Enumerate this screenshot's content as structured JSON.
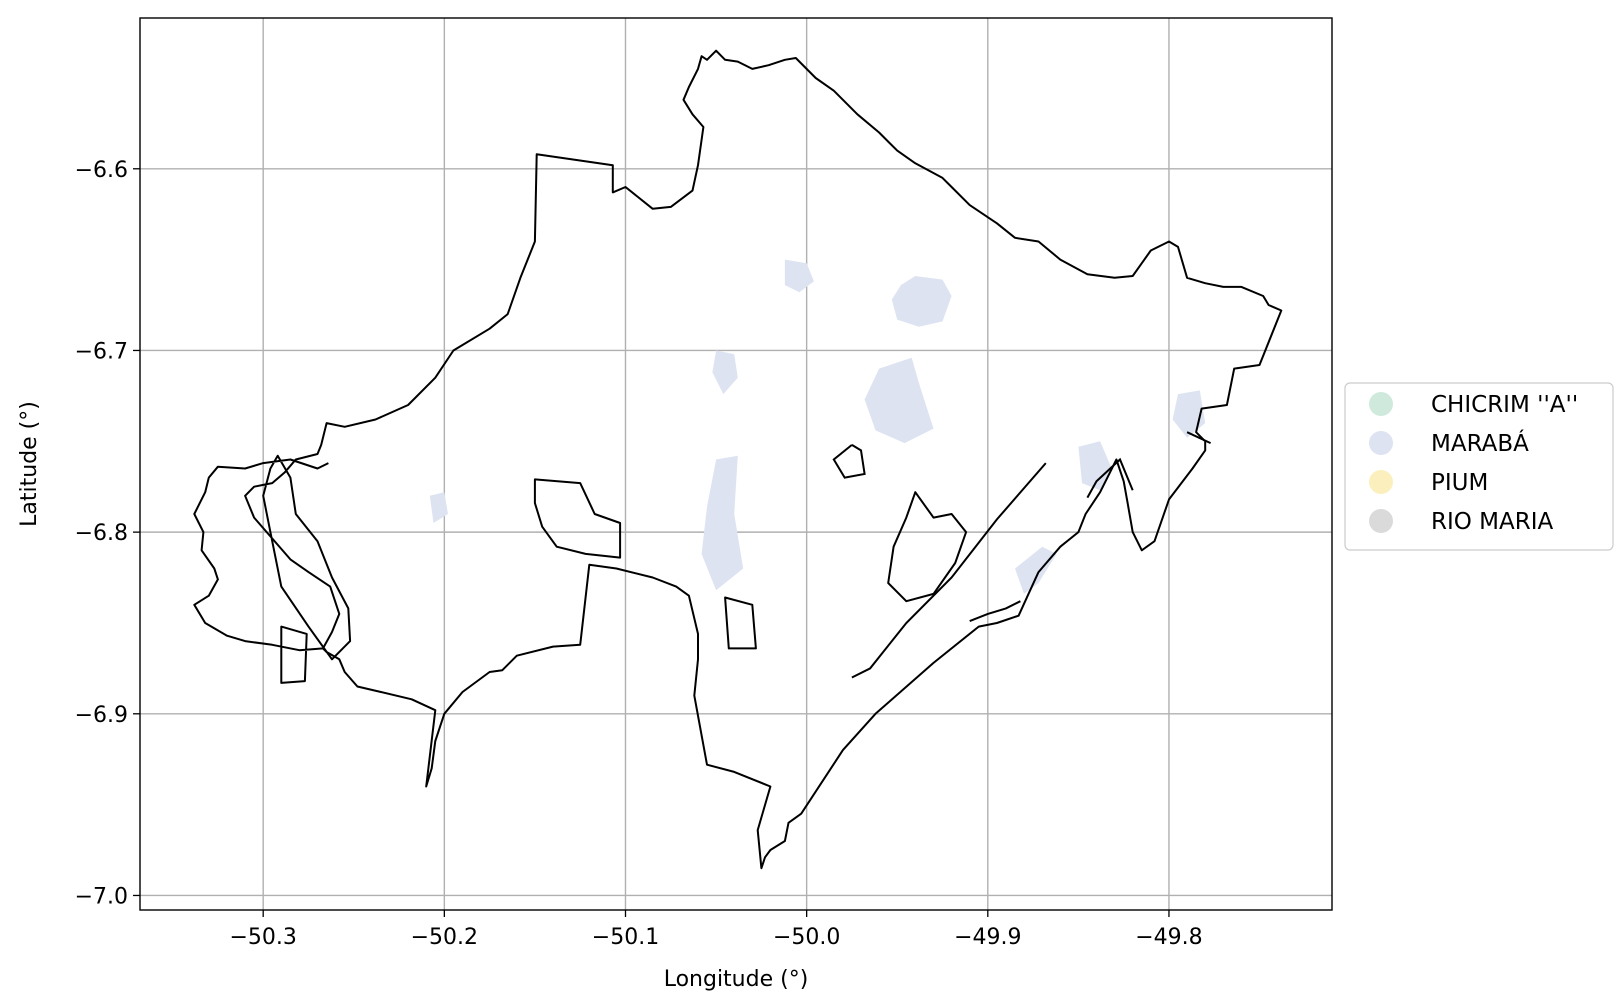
{
  "map": {
    "xlabel": "Longitude (°)",
    "ylabel": "Latitude (°)",
    "xlim": [
      -50.368,
      -49.71
    ],
    "ylim": [
      -7.008,
      -6.517
    ],
    "grid": true,
    "x_ticks": [
      {
        "value": -50.3,
        "label": "−50.3"
      },
      {
        "value": -50.2,
        "label": "−50.2"
      },
      {
        "value": -50.1,
        "label": "−50.1"
      },
      {
        "value": -50.0,
        "label": "−50.0"
      },
      {
        "value": -49.9,
        "label": "−49.9"
      },
      {
        "value": -49.8,
        "label": "−49.8"
      }
    ],
    "y_ticks": [
      {
        "value": -6.6,
        "label": "−6.6"
      },
      {
        "value": -6.7,
        "label": "−6.7"
      },
      {
        "value": -6.8,
        "label": "−6.8"
      },
      {
        "value": -6.9,
        "label": "−6.9"
      },
      {
        "value": -7.0,
        "label": "−7.0"
      }
    ],
    "legend": {
      "placement": "right",
      "entries": [
        {
          "label": "CHICRIM ''A''",
          "color": "#cfeadc"
        },
        {
          "label": "MARABÁ",
          "color": "#dde3f1"
        },
        {
          "label": "PIUM",
          "color": "#fbefbd"
        },
        {
          "label": "RIO MARIA",
          "color": "#dadada"
        }
      ]
    },
    "colors": {
      "boundary": "#000000",
      "grid": "#b0b0b0",
      "fill_maraba": "#dde3f1"
    },
    "boundary_main": [
      [
        -50.267,
        -6.864
      ],
      [
        -50.262,
        -6.855
      ],
      [
        -50.258,
        -6.845
      ],
      [
        -50.263,
        -6.83
      ],
      [
        -50.275,
        -6.822
      ],
      [
        -50.285,
        -6.815
      ],
      [
        -50.305,
        -6.792
      ],
      [
        -50.31,
        -6.78
      ],
      [
        -50.305,
        -6.775
      ],
      [
        -50.3,
        -6.774
      ],
      [
        -50.295,
        -6.773
      ],
      [
        -50.288,
        -6.767
      ],
      [
        -50.282,
        -6.76
      ],
      [
        -50.27,
        -6.757
      ],
      [
        -50.268,
        -6.752
      ],
      [
        -50.265,
        -6.74
      ],
      [
        -50.255,
        -6.742
      ],
      [
        -50.238,
        -6.738
      ],
      [
        -50.22,
        -6.73
      ],
      [
        -50.205,
        -6.715
      ],
      [
        -50.195,
        -6.7
      ],
      [
        -50.175,
        -6.688
      ],
      [
        -50.165,
        -6.68
      ],
      [
        -50.158,
        -6.66
      ],
      [
        -50.15,
        -6.64
      ],
      [
        -50.149,
        -6.592
      ],
      [
        -50.107,
        -6.598
      ],
      [
        -50.107,
        -6.613
      ],
      [
        -50.1,
        -6.61
      ],
      [
        -50.085,
        -6.622
      ],
      [
        -50.075,
        -6.621
      ],
      [
        -50.063,
        -6.612
      ],
      [
        -50.06,
        -6.598
      ],
      [
        -50.057,
        -6.577
      ],
      [
        -50.063,
        -6.57
      ],
      [
        -50.068,
        -6.562
      ],
      [
        -50.065,
        -6.555
      ],
      [
        -50.06,
        -6.545
      ],
      [
        -50.058,
        -6.538
      ],
      [
        -50.055,
        -6.54
      ],
      [
        -50.05,
        -6.535
      ],
      [
        -50.045,
        -6.54
      ],
      [
        -50.038,
        -6.541
      ],
      [
        -50.03,
        -6.545
      ],
      [
        -50.021,
        -6.543
      ],
      [
        -50.012,
        -6.54
      ],
      [
        -50.006,
        -6.539
      ],
      [
        -49.995,
        -6.55
      ],
      [
        -49.985,
        -6.557
      ],
      [
        -49.972,
        -6.57
      ],
      [
        -49.96,
        -6.58
      ],
      [
        -49.95,
        -6.59
      ],
      [
        -49.94,
        -6.597
      ],
      [
        -49.925,
        -6.605
      ],
      [
        -49.92,
        -6.61
      ],
      [
        -49.91,
        -6.62
      ],
      [
        -49.895,
        -6.63
      ],
      [
        -49.885,
        -6.638
      ],
      [
        -49.872,
        -6.64
      ],
      [
        -49.86,
        -6.65
      ],
      [
        -49.845,
        -6.658
      ],
      [
        -49.83,
        -6.66
      ],
      [
        -49.82,
        -6.659
      ],
      [
        -49.81,
        -6.645
      ],
      [
        -49.8,
        -6.64
      ],
      [
        -49.795,
        -6.643
      ],
      [
        -49.79,
        -6.66
      ],
      [
        -49.78,
        -6.663
      ],
      [
        -49.77,
        -6.665
      ],
      [
        -49.76,
        -6.665
      ],
      [
        -49.748,
        -6.67
      ],
      [
        -49.745,
        -6.675
      ],
      [
        -49.738,
        -6.678
      ],
      [
        -49.75,
        -6.708
      ],
      [
        -49.764,
        -6.71
      ],
      [
        -49.768,
        -6.73
      ],
      [
        -49.782,
        -6.732
      ],
      [
        -49.785,
        -6.745
      ],
      [
        -49.78,
        -6.75
      ],
      [
        -49.78,
        -6.755
      ],
      [
        -49.787,
        -6.765
      ],
      [
        -49.8,
        -6.782
      ],
      [
        -49.808,
        -6.805
      ],
      [
        -49.815,
        -6.81
      ],
      [
        -49.82,
        -6.8
      ],
      [
        -49.823,
        -6.783
      ],
      [
        -49.825,
        -6.772
      ],
      [
        -49.829,
        -6.76
      ],
      [
        -49.838,
        -6.778
      ],
      [
        -49.846,
        -6.79
      ],
      [
        -49.85,
        -6.8
      ],
      [
        -49.86,
        -6.808
      ],
      [
        -49.872,
        -6.822
      ],
      [
        -49.878,
        -6.835
      ],
      [
        -49.883,
        -6.846
      ],
      [
        -49.895,
        -6.85
      ],
      [
        -49.905,
        -6.852
      ],
      [
        -49.93,
        -6.872
      ],
      [
        -49.962,
        -6.9
      ],
      [
        -49.98,
        -6.92
      ],
      [
        -50.003,
        -6.955
      ],
      [
        -50.01,
        -6.96
      ],
      [
        -50.012,
        -6.97
      ],
      [
        -50.02,
        -6.975
      ],
      [
        -50.023,
        -6.979
      ],
      [
        -50.025,
        -6.985
      ],
      [
        -50.027,
        -6.964
      ],
      [
        -50.02,
        -6.94
      ],
      [
        -50.04,
        -6.932
      ],
      [
        -50.055,
        -6.928
      ],
      [
        -50.062,
        -6.89
      ],
      [
        -50.06,
        -6.87
      ],
      [
        -50.06,
        -6.856
      ],
      [
        -50.065,
        -6.835
      ],
      [
        -50.072,
        -6.83
      ],
      [
        -50.085,
        -6.825
      ],
      [
        -50.105,
        -6.82
      ],
      [
        -50.12,
        -6.818
      ],
      [
        -50.125,
        -6.862
      ],
      [
        -50.14,
        -6.863
      ],
      [
        -50.16,
        -6.868
      ],
      [
        -50.168,
        -6.876
      ],
      [
        -50.175,
        -6.877
      ],
      [
        -50.19,
        -6.888
      ],
      [
        -50.2,
        -6.9
      ],
      [
        -50.205,
        -6.915
      ],
      [
        -50.207,
        -6.93
      ],
      [
        -50.21,
        -6.94
      ],
      [
        -50.205,
        -6.898
      ],
      [
        -50.218,
        -6.892
      ],
      [
        -50.235,
        -6.888
      ],
      [
        -50.248,
        -6.885
      ],
      [
        -50.255,
        -6.877
      ],
      [
        -50.258,
        -6.87
      ],
      [
        -50.265,
        -6.866
      ],
      [
        -50.267,
        -6.864
      ]
    ],
    "boundary_west": [
      [
        -50.264,
        -6.762
      ],
      [
        -50.27,
        -6.765
      ],
      [
        -50.285,
        -6.76
      ],
      [
        -50.3,
        -6.762
      ],
      [
        -50.31,
        -6.765
      ],
      [
        -50.325,
        -6.764
      ],
      [
        -50.33,
        -6.77
      ],
      [
        -50.332,
        -6.778
      ],
      [
        -50.338,
        -6.79
      ],
      [
        -50.333,
        -6.8
      ],
      [
        -50.334,
        -6.81
      ],
      [
        -50.327,
        -6.82
      ],
      [
        -50.325,
        -6.826
      ],
      [
        -50.33,
        -6.835
      ],
      [
        -50.338,
        -6.84
      ],
      [
        -50.332,
        -6.85
      ],
      [
        -50.32,
        -6.857
      ],
      [
        -50.31,
        -6.86
      ],
      [
        -50.295,
        -6.862
      ],
      [
        -50.28,
        -6.865
      ],
      [
        -50.267,
        -6.864
      ]
    ],
    "holes": [
      [
        [
          -50.292,
          -6.758
        ],
        [
          -50.285,
          -6.77
        ],
        [
          -50.282,
          -6.79
        ],
        [
          -50.27,
          -6.805
        ],
        [
          -50.262,
          -6.825
        ],
        [
          -50.253,
          -6.842
        ],
        [
          -50.252,
          -6.86
        ],
        [
          -50.262,
          -6.87
        ],
        [
          -50.275,
          -6.852
        ],
        [
          -50.29,
          -6.83
        ],
        [
          -50.296,
          -6.8
        ],
        [
          -50.3,
          -6.78
        ],
        [
          -50.296,
          -6.765
        ]
      ],
      [
        [
          -50.29,
          -6.852
        ],
        [
          -50.276,
          -6.856
        ],
        [
          -50.277,
          -6.882
        ],
        [
          -50.29,
          -6.883
        ]
      ],
      [
        [
          -50.15,
          -6.771
        ],
        [
          -50.125,
          -6.773
        ],
        [
          -50.117,
          -6.79
        ],
        [
          -50.103,
          -6.795
        ],
        [
          -50.103,
          -6.814
        ],
        [
          -50.122,
          -6.812
        ],
        [
          -50.138,
          -6.808
        ],
        [
          -50.146,
          -6.797
        ],
        [
          -50.15,
          -6.784
        ]
      ],
      [
        [
          -50.045,
          -6.836
        ],
        [
          -50.03,
          -6.84
        ],
        [
          -50.028,
          -6.864
        ],
        [
          -50.043,
          -6.864
        ]
      ],
      [
        [
          -49.94,
          -6.778
        ],
        [
          -49.93,
          -6.792
        ],
        [
          -49.92,
          -6.79
        ],
        [
          -49.912,
          -6.8
        ],
        [
          -49.918,
          -6.817
        ],
        [
          -49.93,
          -6.834
        ],
        [
          -49.945,
          -6.838
        ],
        [
          -49.955,
          -6.828
        ],
        [
          -49.952,
          -6.808
        ],
        [
          -49.945,
          -6.792
        ]
      ]
    ],
    "extra_lines": [
      [
        [
          -49.975,
          -6.752
        ],
        [
          -49.985,
          -6.76
        ],
        [
          -49.979,
          -6.77
        ],
        [
          -49.968,
          -6.768
        ],
        [
          -49.97,
          -6.755
        ],
        [
          -49.975,
          -6.752
        ]
      ],
      [
        [
          -49.868,
          -6.762
        ],
        [
          -49.895,
          -6.793
        ],
        [
          -49.92,
          -6.825
        ],
        [
          -49.945,
          -6.85
        ],
        [
          -49.965,
          -6.875
        ],
        [
          -49.975,
          -6.88
        ]
      ],
      [
        [
          -49.82,
          -6.777
        ],
        [
          -49.827,
          -6.76
        ],
        [
          -49.84,
          -6.772
        ],
        [
          -49.845,
          -6.781
        ]
      ],
      [
        [
          -49.882,
          -6.838
        ],
        [
          -49.89,
          -6.842
        ],
        [
          -49.9,
          -6.845
        ],
        [
          -49.91,
          -6.849
        ]
      ],
      [
        [
          -49.777,
          -6.751
        ],
        [
          -49.79,
          -6.745
        ]
      ]
    ],
    "water_patches": [
      [
        [
          -49.948,
          -6.664
        ],
        [
          -49.94,
          -6.659
        ],
        [
          -49.925,
          -6.661
        ],
        [
          -49.92,
          -6.67
        ],
        [
          -49.925,
          -6.684
        ],
        [
          -49.938,
          -6.687
        ],
        [
          -49.95,
          -6.683
        ],
        [
          -49.953,
          -6.672
        ]
      ],
      [
        [
          -49.96,
          -6.71
        ],
        [
          -49.942,
          -6.704
        ],
        [
          -49.938,
          -6.718
        ],
        [
          -49.93,
          -6.743
        ],
        [
          -49.946,
          -6.751
        ],
        [
          -49.962,
          -6.744
        ],
        [
          -49.968,
          -6.727
        ]
      ],
      [
        [
          -50.05,
          -6.76
        ],
        [
          -50.038,
          -6.758
        ],
        [
          -50.04,
          -6.79
        ],
        [
          -50.035,
          -6.82
        ],
        [
          -50.05,
          -6.832
        ],
        [
          -50.058,
          -6.812
        ],
        [
          -50.055,
          -6.786
        ]
      ],
      [
        [
          -49.85,
          -6.753
        ],
        [
          -49.838,
          -6.75
        ],
        [
          -49.832,
          -6.764
        ],
        [
          -49.838,
          -6.777
        ],
        [
          -49.848,
          -6.773
        ]
      ],
      [
        [
          -49.795,
          -6.724
        ],
        [
          -49.783,
          -6.722
        ],
        [
          -49.78,
          -6.74
        ],
        [
          -49.79,
          -6.748
        ],
        [
          -49.798,
          -6.738
        ]
      ],
      [
        [
          -50.012,
          -6.65
        ],
        [
          -50.0,
          -6.652
        ],
        [
          -49.996,
          -6.662
        ],
        [
          -50.004,
          -6.668
        ],
        [
          -50.012,
          -6.664
        ]
      ],
      [
        [
          -49.885,
          -6.82
        ],
        [
          -49.87,
          -6.808
        ],
        [
          -49.862,
          -6.812
        ],
        [
          -49.872,
          -6.828
        ],
        [
          -49.88,
          -6.834
        ]
      ],
      [
        [
          -50.05,
          -6.7
        ],
        [
          -50.04,
          -6.702
        ],
        [
          -50.038,
          -6.715
        ],
        [
          -50.046,
          -6.724
        ],
        [
          -50.052,
          -6.712
        ]
      ],
      [
        [
          -50.208,
          -6.78
        ],
        [
          -50.2,
          -6.778
        ],
        [
          -50.198,
          -6.79
        ],
        [
          -50.206,
          -6.795
        ]
      ]
    ]
  }
}
